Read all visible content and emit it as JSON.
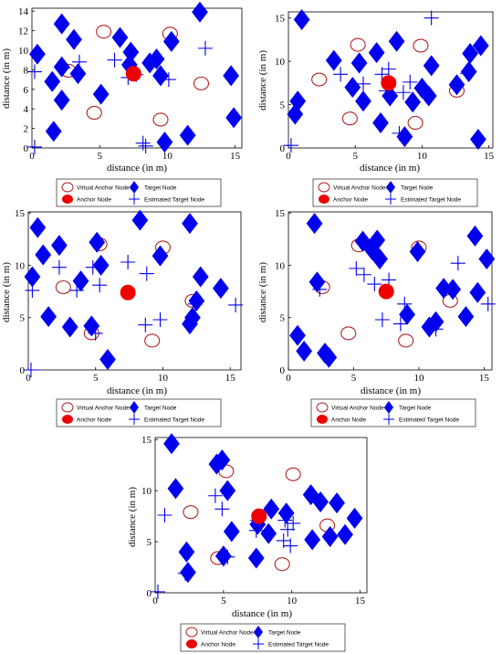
{
  "chart_data": [
    {
      "type": "scatter",
      "xlabel": "distance (in m)",
      "ylabel": "distance (in m)",
      "xlim": [
        0,
        15.5
      ],
      "ylim": [
        0,
        14.3
      ],
      "xticks": [
        0,
        5,
        10,
        15
      ],
      "yticks": [
        0,
        2,
        4,
        6,
        8,
        10,
        12,
        14
      ],
      "grid": false,
      "legend": "below",
      "series": [
        {
          "name": "Virtual Anchor Nodes",
          "marker": "open-ellipse",
          "color": "#b22222",
          "points": [
            [
              5.3,
              11.9
            ],
            [
              10.2,
              11.7
            ],
            [
              2.7,
              7.9
            ],
            [
              4.6,
              3.6
            ],
            [
              9.5,
              2.9
            ],
            [
              12.5,
              6.6
            ]
          ]
        },
        {
          "name": "Anchor Node",
          "marker": "filled-ellipse",
          "color": "#ee0000",
          "points": [
            [
              7.5,
              7.6
            ]
          ]
        },
        {
          "name": "Target Node",
          "marker": "diamond",
          "color": "#0000ee",
          "points": [
            [
              0.4,
              9.6
            ],
            [
              1.5,
              6.8
            ],
            [
              1.6,
              1.7
            ],
            [
              2.2,
              12.7
            ],
            [
              2.2,
              8.3
            ],
            [
              2.2,
              4.9
            ],
            [
              3.1,
              11.1
            ],
            [
              3.4,
              7.6
            ],
            [
              5.1,
              5.5
            ],
            [
              6.5,
              11.3
            ],
            [
              7.2,
              8.5
            ],
            [
              7.3,
              9.8
            ],
            [
              8.7,
              8.7
            ],
            [
              9.2,
              9.1
            ],
            [
              9.5,
              7.4
            ],
            [
              9.8,
              0.6
            ],
            [
              10.3,
              10.9
            ],
            [
              11.5,
              1.3
            ],
            [
              12.4,
              13.9
            ],
            [
              14.7,
              7.4
            ],
            [
              14.9,
              3.1
            ]
          ]
        },
        {
          "name": "Estimated Target Node",
          "marker": "plus",
          "color": "#0000ee",
          "points": [
            [
              0.2,
              7.8
            ],
            [
              0.2,
              0.1
            ],
            [
              2.3,
              8.2
            ],
            [
              3.5,
              8.8
            ],
            [
              6.1,
              9.0
            ],
            [
              7.1,
              7.2
            ],
            [
              7.7,
              7.5
            ],
            [
              8.2,
              0.5
            ],
            [
              8.4,
              0.2
            ],
            [
              10.1,
              7.0
            ],
            [
              12.8,
              10.2
            ]
          ]
        }
      ]
    },
    {
      "type": "scatter",
      "xlabel": "distance (in m)",
      "ylabel": "distance (in m)",
      "xlim": [
        0,
        15.3
      ],
      "ylim": [
        0,
        15.7
      ],
      "xticks": [
        0,
        5,
        10,
        15
      ],
      "yticks": [
        0,
        5,
        10,
        15
      ],
      "grid": false,
      "legend": "below",
      "series": [
        {
          "name": "Virtual Anchor Nodes",
          "marker": "open-ellipse",
          "color": "#b22222",
          "points": [
            [
              5.2,
              11.9
            ],
            [
              9.9,
              11.8
            ],
            [
              2.3,
              7.9
            ],
            [
              4.6,
              3.4
            ],
            [
              9.5,
              2.9
            ],
            [
              12.6,
              6.6
            ]
          ]
        },
        {
          "name": "Anchor Node",
          "marker": "filled-ellipse",
          "color": "#ee0000",
          "points": [
            [
              7.5,
              7.5
            ]
          ]
        },
        {
          "name": "Target Node",
          "marker": "diamond",
          "color": "#0000ee",
          "points": [
            [
              0.5,
              3.9
            ],
            [
              0.7,
              5.4
            ],
            [
              1.0,
              14.8
            ],
            [
              3.4,
              10.1
            ],
            [
              4.8,
              7.0
            ],
            [
              5.3,
              9.8
            ],
            [
              5.6,
              5.4
            ],
            [
              6.6,
              11.0
            ],
            [
              6.9,
              2.9
            ],
            [
              7.6,
              6.0
            ],
            [
              8.1,
              12.3
            ],
            [
              8.7,
              1.3
            ],
            [
              9.3,
              5.3
            ],
            [
              10.0,
              6.9
            ],
            [
              10.5,
              6.0
            ],
            [
              10.7,
              9.5
            ],
            [
              12.6,
              7.3
            ],
            [
              13.5,
              8.8
            ],
            [
              13.6,
              10.9
            ],
            [
              14.2,
              1.0
            ],
            [
              14.4,
              11.8
            ]
          ]
        },
        {
          "name": "Estimated Target Node",
          "marker": "plus",
          "color": "#0000ee",
          "points": [
            [
              0.2,
              0.3
            ],
            [
              3.9,
              8.5
            ],
            [
              5.6,
              7.4
            ],
            [
              7.0,
              8.5
            ],
            [
              7.5,
              9.1
            ],
            [
              7.3,
              6.6
            ],
            [
              8.3,
              1.7
            ],
            [
              8.6,
              6.4
            ],
            [
              9.1,
              7.6
            ],
            [
              10.2,
              6.5
            ],
            [
              10.7,
              15.0
            ],
            [
              13.4,
              8.6
            ]
          ]
        }
      ]
    },
    {
      "type": "scatter",
      "xlabel": "distance (in m)",
      "ylabel": "distance (in m)",
      "xlim": [
        0,
        15.8
      ],
      "ylim": [
        0,
        15.1
      ],
      "xticks": [
        0,
        5,
        10,
        15
      ],
      "yticks": [
        0,
        5,
        10,
        15
      ],
      "grid": false,
      "legend": "below",
      "series": [
        {
          "name": "Virtual Anchor Nodes",
          "marker": "open-ellipse",
          "color": "#b22222",
          "points": [
            [
              5.3,
              12.0
            ],
            [
              10.0,
              11.7
            ],
            [
              2.6,
              7.9
            ],
            [
              4.7,
              3.5
            ],
            [
              9.2,
              2.8
            ],
            [
              12.2,
              6.6
            ]
          ]
        },
        {
          "name": "Anchor Node",
          "marker": "filled-ellipse",
          "color": "#ee0000",
          "points": [
            [
              7.4,
              7.4
            ]
          ]
        },
        {
          "name": "Target Node",
          "marker": "diamond",
          "color": "#0000ee",
          "points": [
            [
              0.7,
              13.6
            ],
            [
              0.3,
              8.9
            ],
            [
              1.1,
              11.0
            ],
            [
              1.5,
              5.1
            ],
            [
              2.3,
              11.9
            ],
            [
              3.1,
              4.1
            ],
            [
              3.9,
              8.5
            ],
            [
              4.7,
              4.2
            ],
            [
              5.4,
              10.0
            ],
            [
              5.1,
              12.2
            ],
            [
              5.9,
              1.0
            ],
            [
              8.3,
              14.3
            ],
            [
              9.8,
              10.9
            ],
            [
              12.0,
              14.0
            ],
            [
              12.2,
              5.0
            ],
            [
              12.5,
              6.6
            ],
            [
              12.8,
              8.9
            ],
            [
              14.3,
              7.8
            ],
            [
              12.0,
              4.4
            ]
          ]
        },
        {
          "name": "Estimated Target Node",
          "marker": "plus",
          "color": "#0000ee",
          "points": [
            [
              0.2,
              0.0
            ],
            [
              0.3,
              7.6
            ],
            [
              2.3,
              9.8
            ],
            [
              3.6,
              7.6
            ],
            [
              4.8,
              9.8
            ],
            [
              5.0,
              3.5
            ],
            [
              5.3,
              8.1
            ],
            [
              7.4,
              10.3
            ],
            [
              8.7,
              4.3
            ],
            [
              8.8,
              9.2
            ],
            [
              9.8,
              4.8
            ],
            [
              12.4,
              6.3
            ],
            [
              15.4,
              6.2
            ]
          ]
        }
      ]
    },
    {
      "type": "scatter",
      "xlabel": "distance (in m)",
      "ylabel": "distance (in m)",
      "xlim": [
        0,
        15.6
      ],
      "ylim": [
        0,
        15.1
      ],
      "xticks": [
        0,
        5,
        10,
        15
      ],
      "yticks": [
        0,
        5,
        10,
        15
      ],
      "grid": false,
      "legend": "below",
      "series": [
        {
          "name": "Virtual Anchor Nodes",
          "marker": "open-ellipse",
          "color": "#b22222",
          "points": [
            [
              5.4,
              11.9
            ],
            [
              10.0,
              11.7
            ],
            [
              2.6,
              7.9
            ],
            [
              4.6,
              3.5
            ],
            [
              9.0,
              2.8
            ],
            [
              12.4,
              6.6
            ]
          ]
        },
        {
          "name": "Anchor Node",
          "marker": "filled-ellipse",
          "color": "#ee0000",
          "points": [
            [
              7.5,
              7.5
            ]
          ]
        },
        {
          "name": "Target Node",
          "marker": "diamond",
          "color": "#0000ee",
          "points": [
            [
              0.7,
              3.3
            ],
            [
              1.2,
              1.8
            ],
            [
              2.0,
              14.0
            ],
            [
              2.2,
              8.4
            ],
            [
              2.8,
              1.6
            ],
            [
              3.1,
              1.2
            ],
            [
              5.7,
              12.3
            ],
            [
              6.4,
              11.5
            ],
            [
              6.8,
              12.4
            ],
            [
              7.0,
              10.6
            ],
            [
              9.1,
              5.3
            ],
            [
              9.9,
              11.3
            ],
            [
              10.8,
              4.1
            ],
            [
              11.3,
              4.6
            ],
            [
              11.9,
              7.8
            ],
            [
              12.6,
              7.7
            ],
            [
              13.6,
              5.1
            ],
            [
              14.3,
              12.8
            ],
            [
              14.5,
              7.4
            ],
            [
              15.2,
              10.6
            ]
          ]
        },
        {
          "name": "Estimated Target Node",
          "marker": "plus",
          "color": "#0000ee",
          "points": [
            [
              2.4,
              7.7
            ],
            [
              5.2,
              9.7
            ],
            [
              5.8,
              9.1
            ],
            [
              6.6,
              8.2
            ],
            [
              7.2,
              4.8
            ],
            [
              7.7,
              8.6
            ],
            [
              8.6,
              4.4
            ],
            [
              8.9,
              6.3
            ],
            [
              9.1,
              5.2
            ],
            [
              11.3,
              3.9
            ],
            [
              13.0,
              10.2
            ],
            [
              15.3,
              6.3
            ]
          ]
        }
      ]
    },
    {
      "type": "scatter",
      "xlabel": "distance (in m)",
      "ylabel": "distance (in m)",
      "xlim": [
        0,
        15.5
      ],
      "ylim": [
        0,
        15.2
      ],
      "xticks": [
        0,
        5,
        10,
        15
      ],
      "yticks": [
        0,
        5,
        10,
        15
      ],
      "grid": false,
      "legend": "below",
      "series": [
        {
          "name": "Virtual Anchor Nodes",
          "marker": "open-ellipse",
          "color": "#b22222",
          "points": [
            [
              5.2,
              11.9
            ],
            [
              10.1,
              11.6
            ],
            [
              2.6,
              7.9
            ],
            [
              4.6,
              3.4
            ],
            [
              9.3,
              2.8
            ],
            [
              12.6,
              6.6
            ]
          ]
        },
        {
          "name": "Anchor Node",
          "marker": "filled-ellipse",
          "color": "#ee0000",
          "points": [
            [
              7.6,
              7.5
            ]
          ]
        },
        {
          "name": "Target Node",
          "marker": "diamond",
          "color": "#0000ee",
          "points": [
            [
              1.2,
              14.6
            ],
            [
              1.5,
              10.2
            ],
            [
              2.3,
              4.0
            ],
            [
              2.4,
              2.0
            ],
            [
              4.5,
              12.6
            ],
            [
              4.9,
              13.0
            ],
            [
              5.3,
              10.0
            ],
            [
              5.0,
              3.6
            ],
            [
              5.6,
              6.0
            ],
            [
              7.4,
              3.4
            ],
            [
              7.5,
              6.7
            ],
            [
              8.3,
              5.8
            ],
            [
              8.5,
              8.2
            ],
            [
              9.6,
              7.8
            ],
            [
              11.4,
              9.6
            ],
            [
              11.5,
              5.2
            ],
            [
              12.1,
              8.9
            ],
            [
              12.8,
              5.5
            ],
            [
              13.3,
              8.8
            ],
            [
              13.9,
              5.7
            ],
            [
              14.6,
              7.3
            ]
          ]
        },
        {
          "name": "Estimated Target Node",
          "marker": "plus",
          "color": "#0000ee",
          "points": [
            [
              0.2,
              0.1
            ],
            [
              0.7,
              7.6
            ],
            [
              2.2,
              1.9
            ],
            [
              4.4,
              9.5
            ],
            [
              4.9,
              8.2
            ],
            [
              5.3,
              3.5
            ],
            [
              7.5,
              7.1
            ],
            [
              7.4,
              6.1
            ],
            [
              9.4,
              5.1
            ],
            [
              9.5,
              7.1
            ],
            [
              9.7,
              6.2
            ],
            [
              9.9,
              4.6
            ],
            [
              10.1,
              6.8
            ]
          ]
        }
      ]
    }
  ],
  "legend_labels": {
    "virtual_anchor": "Virtual Anchor Nodes",
    "anchor": "Anchor Node",
    "target": "Target Node",
    "estimated": "Estimated Target Node"
  },
  "colors": {
    "virtual_anchor": "#b22222",
    "anchor": "#ee0000",
    "target": "#0000ee",
    "estimated": "#0000ee",
    "axis": "#000000"
  }
}
